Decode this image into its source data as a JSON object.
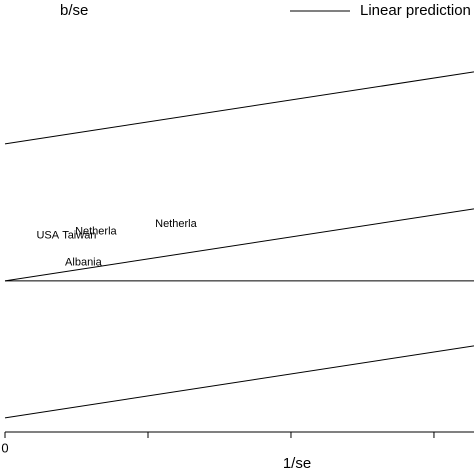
{
  "chart_data": {
    "type": "line",
    "y_label": "b/se",
    "x_label": "1/se",
    "xlim": [
      0,
      3.28
    ],
    "ylim": [
      -2.82,
      4.1
    ],
    "xticks": [
      0,
      {
        "value": 1,
        "label": null
      },
      {
        "value": 2,
        "label": null
      },
      {
        "value": 3,
        "label": null
      }
    ],
    "x": [
      0,
      3.28
    ],
    "series": [
      {
        "name": "Linear prediction",
        "color": "#000000",
        "values": [
          0,
          1.05
        ]
      },
      {
        "color": "#000000",
        "values": [
          2,
          3.05
        ]
      },
      {
        "color": "#000000",
        "values": [
          -2,
          -0.95
        ]
      },
      {
        "color": "#000000",
        "values": [
          0,
          0
        ]
      }
    ],
    "points": {
      "labels": [
        "USA",
        "Taiwan",
        "Netherla",
        "Netherla",
        "Albania"
      ],
      "x": [
        0.22,
        0.4,
        0.49,
        1.05,
        0.42
      ],
      "y": [
        0.66,
        0.66,
        0.72,
        0.83,
        0.27
      ]
    },
    "legend": "top-right"
  }
}
